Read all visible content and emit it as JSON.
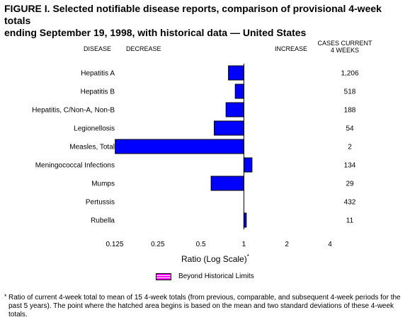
{
  "figure": {
    "title": "FIGURE I. Selected notifiable disease reports, comparison of provisional 4-week totals\nending September 19, 1998, with historical data — United States"
  },
  "headers": {
    "disease": "DISEASE",
    "decrease": "DECREASE",
    "increase": "INCREASE",
    "cases": "CASES CURRENT\n4 WEEKS"
  },
  "chart_data": {
    "type": "bar",
    "orientation": "horizontal",
    "x_scale": "log2",
    "xlabel": "Ratio (Log Scale)",
    "xlabel_mark": "*",
    "xlim": [
      0.125,
      4
    ],
    "xticks": [
      "0.125",
      "0.25",
      "0.5",
      "1",
      "2",
      "4"
    ],
    "baseline": 1,
    "bar_color": "#0000ff",
    "categories": [
      "Hepatitis A",
      "Hepatitis B",
      "Hepatitis, C/Non-A, Non-B",
      "Legionellosis",
      "Measles, Total",
      "Meningococcal Infections",
      "Mumps",
      "Pertussis",
      "Rubella"
    ],
    "values": [
      0.78,
      0.87,
      0.75,
      0.62,
      0.126,
      1.14,
      0.59,
      1.0,
      1.04
    ],
    "cases": [
      "1,206",
      "518",
      "188",
      "54",
      "2",
      "134",
      "29",
      "432",
      "11"
    ]
  },
  "legend": {
    "label": "Beyond Historical Limits",
    "hatch_color": "#ff00ff"
  },
  "footnote": {
    "mark": "*",
    "text": "Ratio of current 4-week total to mean of 15 4-week totals (from previous, comparable, and subsequent 4-week periods for the past 5 years). The point where the hatched area begins is based on the mean and two standard deviations of these 4-week totals."
  }
}
